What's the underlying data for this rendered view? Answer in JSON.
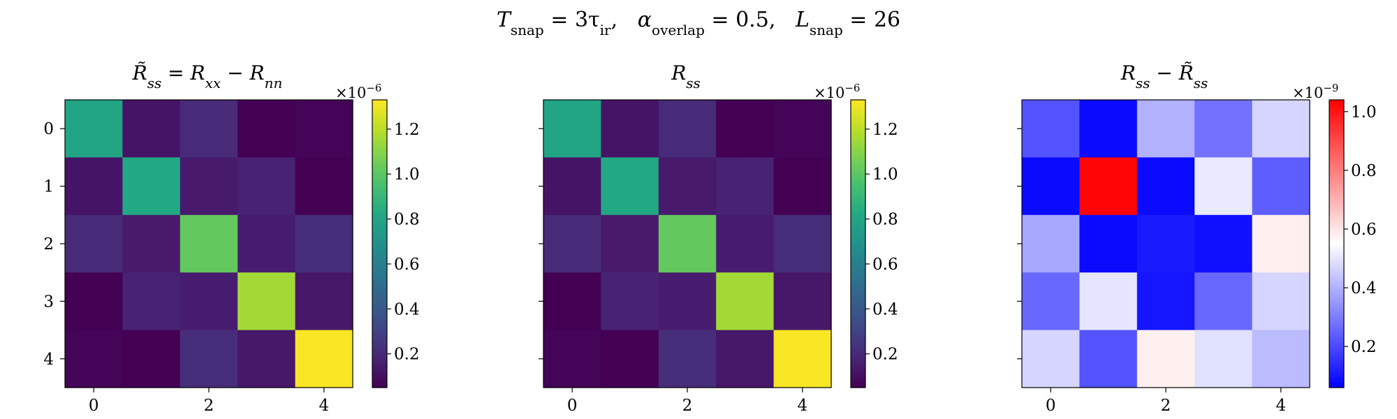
{
  "figure": {
    "suptitle": {
      "t_var": "T",
      "t_sub": "snap",
      "t_val": " = 3τ",
      "t_val_sub": "ir",
      "sep1": ",   ",
      "a_var": "α",
      "a_sub": "overlap",
      "a_val": " = 0.5",
      "sep2": ",   ",
      "l_var": "L",
      "l_sub": "snap",
      "l_val": " = 26"
    }
  },
  "chart_data": [
    {
      "type": "heatmap",
      "title": "R̃ss = Rxx − Rnn",
      "title_parts": {
        "r1": "R̃",
        "s1": "ss",
        "eq": " = ",
        "r2": "R",
        "s2": "xx",
        "minus": " − ",
        "r3": "R",
        "s3": "nn"
      },
      "colormap": "viridis",
      "x_ticks": [
        "0",
        "2",
        "4"
      ],
      "y_ticks": [
        "0",
        "1",
        "2",
        "3",
        "4"
      ],
      "values": [
        [
          0.8,
          0.12,
          0.2,
          0.05,
          0.06
        ],
        [
          0.12,
          0.82,
          0.14,
          0.17,
          0.05
        ],
        [
          0.2,
          0.14,
          1.02,
          0.15,
          0.22
        ],
        [
          0.05,
          0.17,
          0.15,
          1.15,
          0.13
        ],
        [
          0.06,
          0.05,
          0.22,
          0.13,
          1.32
        ]
      ],
      "vmin": 0.05,
      "vmax": 1.33,
      "colorbar_ticks": [
        "0.2",
        "0.4",
        "0.6",
        "0.8",
        "1.0",
        "1.2"
      ],
      "colorbar_tick_values": [
        0.2,
        0.4,
        0.6,
        0.8,
        1.0,
        1.2
      ],
      "colorbar_multiplier": "×10",
      "colorbar_exponent": "−6"
    },
    {
      "type": "heatmap",
      "title": "Rss",
      "title_parts": {
        "r1": "R",
        "s1": "ss"
      },
      "colormap": "viridis",
      "x_ticks": [
        "0",
        "2",
        "4"
      ],
      "y_ticks": [],
      "values": [
        [
          0.8,
          0.12,
          0.2,
          0.05,
          0.06
        ],
        [
          0.12,
          0.82,
          0.14,
          0.17,
          0.05
        ],
        [
          0.2,
          0.14,
          1.02,
          0.15,
          0.22
        ],
        [
          0.05,
          0.17,
          0.15,
          1.15,
          0.13
        ],
        [
          0.06,
          0.05,
          0.22,
          0.13,
          1.32
        ]
      ],
      "vmin": 0.05,
      "vmax": 1.33,
      "colorbar_ticks": [
        "0.2",
        "0.4",
        "0.6",
        "0.8",
        "1.0",
        "1.2"
      ],
      "colorbar_tick_values": [
        0.2,
        0.4,
        0.6,
        0.8,
        1.0,
        1.2
      ],
      "colorbar_multiplier": "×10",
      "colorbar_exponent": "−6"
    },
    {
      "type": "heatmap",
      "title": "Rss − R̃ss",
      "title_parts": {
        "r1": "R",
        "s1": "ss",
        "minus": " − ",
        "r2": "R̃",
        "s2": "ss"
      },
      "colormap": "bwr",
      "x_ticks": [
        "0",
        "2",
        "4"
      ],
      "y_ticks": [],
      "values": [
        [
          0.22,
          0.08,
          0.4,
          0.28,
          0.47
        ],
        [
          0.08,
          1.03,
          0.08,
          0.51,
          0.24
        ],
        [
          0.38,
          0.08,
          0.11,
          0.09,
          0.58
        ],
        [
          0.26,
          0.5,
          0.1,
          0.26,
          0.47
        ],
        [
          0.47,
          0.22,
          0.58,
          0.49,
          0.42
        ]
      ],
      "vmin": 0.06,
      "vmax": 1.04,
      "colorbar_ticks": [
        "0.2",
        "0.4",
        "0.6",
        "0.8",
        "1.0"
      ],
      "colorbar_tick_values": [
        0.2,
        0.4,
        0.6,
        0.8,
        1.0
      ],
      "colorbar_multiplier": "×10",
      "colorbar_exponent": "−9"
    }
  ]
}
